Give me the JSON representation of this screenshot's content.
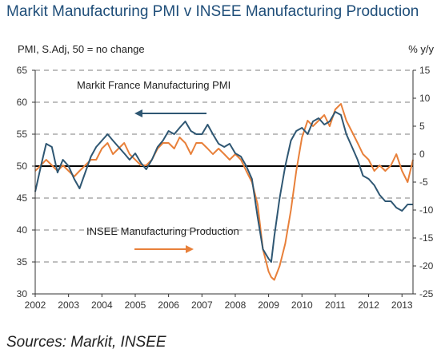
{
  "title": "Markit Manufacturing PMI v INSEE Manufacturing Production",
  "source": "Sources: Markit, INSEE",
  "colors": {
    "pmi": "#2f5773",
    "production": "#e8803a",
    "title": "#1f4e79",
    "grid": "#555555"
  },
  "chart_data": {
    "type": "line",
    "title": "Markit Manufacturing PMI v INSEE Manufacturing Production",
    "ylabel_left": "PMI, S.Adj, 50 = no change",
    "ylabel_right": "% y/y",
    "ylim_left": [
      30,
      65
    ],
    "ylim_right": [
      -25,
      15
    ],
    "yticks_left": [
      30,
      35,
      40,
      45,
      50,
      55,
      60,
      65
    ],
    "yticks_right": [
      -25,
      -20,
      -15,
      -10,
      -5,
      0,
      5,
      10,
      15
    ],
    "xlim": [
      2002,
      2013.33
    ],
    "xticks": [
      "2002",
      "2003",
      "2004",
      "2005",
      "2006",
      "2007",
      "2008",
      "2009",
      "2010",
      "2011",
      "2012",
      "2013"
    ],
    "grid": "horizontal dashed",
    "reference_line": 50,
    "annotations": [
      {
        "text": "Markit France Manufacturing PMI",
        "arrow": "left",
        "series": "pmi"
      },
      {
        "text": "INSEE Manufacturing Production",
        "arrow": "right",
        "series": "production"
      }
    ],
    "series": [
      {
        "name": "Markit France Manufacturing PMI",
        "axis": "left",
        "x": [
          2002.0,
          2002.17,
          2002.33,
          2002.5,
          2002.67,
          2002.83,
          2003.0,
          2003.17,
          2003.33,
          2003.5,
          2003.67,
          2003.83,
          2004.0,
          2004.17,
          2004.33,
          2004.5,
          2004.67,
          2004.83,
          2005.0,
          2005.17,
          2005.33,
          2005.5,
          2005.67,
          2005.83,
          2006.0,
          2006.17,
          2006.33,
          2006.5,
          2006.67,
          2006.83,
          2007.0,
          2007.17,
          2007.33,
          2007.5,
          2007.67,
          2007.83,
          2008.0,
          2008.17,
          2008.33,
          2008.5,
          2008.67,
          2008.83,
          2009.0,
          2009.08,
          2009.17,
          2009.33,
          2009.5,
          2009.67,
          2009.83,
          2010.0,
          2010.17,
          2010.33,
          2010.5,
          2010.67,
          2010.83,
          2011.0,
          2011.17,
          2011.33,
          2011.5,
          2011.67,
          2011.83,
          2012.0,
          2012.17,
          2012.33,
          2012.5,
          2012.67,
          2012.83,
          2013.0,
          2013.17,
          2013.33
        ],
        "values": [
          46,
          50,
          53.5,
          53,
          49,
          51,
          50,
          48,
          46.5,
          49,
          51.5,
          53,
          54,
          55,
          54,
          53,
          52,
          51,
          52,
          50.5,
          49.5,
          51,
          53,
          54,
          55.5,
          55,
          56,
          57,
          55.5,
          55,
          55,
          56.5,
          55,
          53.5,
          53,
          53.5,
          52,
          51.5,
          50,
          48,
          42,
          37,
          35.5,
          35,
          39,
          45,
          50,
          54,
          55.5,
          56,
          55,
          57,
          57.5,
          56.5,
          57,
          58.5,
          58,
          55,
          53,
          51,
          48.5,
          48,
          47,
          45.5,
          44.5,
          44.5,
          43.5,
          43,
          44,
          44
        ]
      },
      {
        "name": "INSEE Manufacturing Production",
        "axis": "right",
        "x": [
          2002.0,
          2002.17,
          2002.33,
          2002.5,
          2002.67,
          2002.83,
          2003.0,
          2003.17,
          2003.33,
          2003.5,
          2003.67,
          2003.83,
          2004.0,
          2004.17,
          2004.33,
          2004.5,
          2004.67,
          2004.83,
          2005.0,
          2005.17,
          2005.33,
          2005.5,
          2005.67,
          2005.83,
          2006.0,
          2006.17,
          2006.33,
          2006.5,
          2006.67,
          2006.83,
          2007.0,
          2007.17,
          2007.33,
          2007.5,
          2007.67,
          2007.83,
          2008.0,
          2008.17,
          2008.33,
          2008.5,
          2008.67,
          2008.83,
          2009.0,
          2009.08,
          2009.17,
          2009.33,
          2009.5,
          2009.67,
          2009.83,
          2010.0,
          2010.17,
          2010.33,
          2010.5,
          2010.67,
          2010.83,
          2011.0,
          2011.17,
          2011.33,
          2011.5,
          2011.67,
          2011.83,
          2012.0,
          2012.17,
          2012.33,
          2012.5,
          2012.67,
          2012.83,
          2013.0,
          2013.17,
          2013.33
        ],
        "values": [
          -3,
          -2,
          -1,
          -2,
          -3,
          -2,
          -3,
          -4,
          -3,
          -2,
          -1,
          -1,
          1,
          2,
          0,
          1,
          2,
          0,
          -1,
          -2,
          -2,
          -1,
          1,
          2,
          2,
          1,
          3,
          2,
          0,
          2,
          2,
          1,
          0,
          1,
          0,
          -1,
          0,
          -1,
          -3,
          -5,
          -9,
          -17,
          -21,
          -22,
          -22.5,
          -20,
          -16,
          -10,
          -3,
          3,
          6,
          5,
          6,
          7,
          5,
          8,
          9,
          6,
          4,
          2,
          0,
          -1,
          -3,
          -2,
          -3,
          -2,
          0,
          -3,
          -5,
          -1
        ]
      }
    ]
  }
}
